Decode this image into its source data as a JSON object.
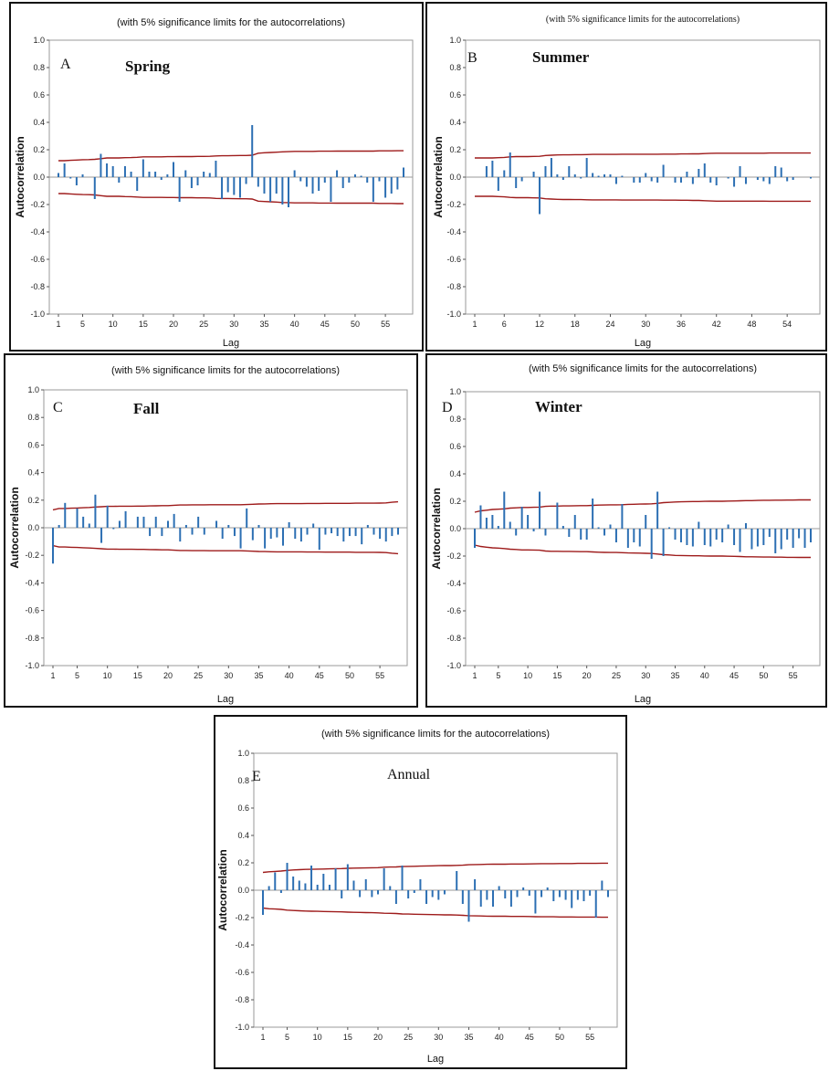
{
  "chart_data": [
    {
      "type": "bar",
      "panel_letter": "A",
      "title": "Spring",
      "subtitle": "(with 5% significance limits for the autocorrelations)",
      "xlabel": "Lag",
      "ylabel": "Autocorrelation",
      "ylim": [
        -1.0,
        1.0
      ],
      "yticks": [
        "1.0",
        "0.8",
        "0.6",
        "0.4",
        "0.2",
        "0.0",
        "-0.2",
        "-0.4",
        "-0.6",
        "-0.8",
        "-1.0"
      ],
      "xticks": [
        1,
        5,
        10,
        15,
        20,
        25,
        30,
        35,
        40,
        45,
        50,
        55
      ],
      "lags": [
        1,
        2,
        3,
        4,
        5,
        6,
        7,
        8,
        9,
        10,
        11,
        12,
        13,
        14,
        15,
        16,
        17,
        18,
        19,
        20,
        21,
        22,
        23,
        24,
        25,
        26,
        27,
        28,
        29,
        30,
        31,
        32,
        33,
        34,
        35,
        36,
        37,
        38,
        39,
        40,
        41,
        42,
        43,
        44,
        45,
        46,
        47,
        48,
        49,
        50,
        51,
        52,
        53,
        54,
        55,
        56,
        57,
        58
      ],
      "values": [
        0.03,
        0.1,
        -0.01,
        -0.06,
        0.02,
        0.0,
        -0.16,
        0.17,
        0.1,
        0.08,
        -0.04,
        0.08,
        0.04,
        -0.1,
        0.13,
        0.04,
        0.04,
        -0.02,
        0.02,
        0.11,
        -0.18,
        0.05,
        -0.08,
        -0.06,
        0.04,
        0.03,
        0.12,
        -0.16,
        -0.11,
        -0.13,
        -0.15,
        -0.05,
        0.38,
        -0.07,
        -0.12,
        -0.18,
        -0.12,
        -0.2,
        -0.22,
        0.05,
        -0.03,
        -0.07,
        -0.12,
        -0.1,
        -0.04,
        -0.18,
        0.05,
        -0.08,
        -0.04,
        0.02,
        0.01,
        -0.04,
        -0.18,
        -0.03,
        -0.15,
        -0.12,
        -0.09,
        0.07
      ],
      "limit_upper": [
        0.12,
        0.12,
        0.123,
        0.125,
        0.127,
        0.128,
        0.13,
        0.135,
        0.14,
        0.14,
        0.14,
        0.142,
        0.143,
        0.145,
        0.148,
        0.148,
        0.148,
        0.148,
        0.149,
        0.149,
        0.15,
        0.15,
        0.15,
        0.151,
        0.151,
        0.152,
        0.155,
        0.156,
        0.156,
        0.157,
        0.158,
        0.158,
        0.16,
        0.175,
        0.178,
        0.18,
        0.182,
        0.185,
        0.186,
        0.188,
        0.188,
        0.188,
        0.188,
        0.189,
        0.189,
        0.189,
        0.19,
        0.19,
        0.19,
        0.19,
        0.19,
        0.19,
        0.19,
        0.192,
        0.192,
        0.192,
        0.193,
        0.193
      ]
    },
    {
      "type": "bar",
      "panel_letter": "B",
      "title": "Summer",
      "subtitle": "(with 5% significance limits for the autocorrelations)",
      "xlabel": "Lag",
      "ylabel": "Autocorrelation",
      "ylim": [
        -1.0,
        1.0
      ],
      "yticks": [
        "1.0",
        "0.8",
        "0.6",
        "0.4",
        "0.2",
        "0.0",
        "-0.2",
        "-0.4",
        "-0.6",
        "-0.8",
        "-1.0"
      ],
      "xticks": [
        1,
        6,
        12,
        18,
        24,
        30,
        36,
        42,
        48,
        54
      ],
      "lags": [
        1,
        2,
        3,
        4,
        5,
        6,
        7,
        8,
        9,
        10,
        11,
        12,
        13,
        14,
        15,
        16,
        17,
        18,
        19,
        20,
        21,
        22,
        23,
        24,
        25,
        26,
        27,
        28,
        29,
        30,
        31,
        32,
        33,
        34,
        35,
        36,
        37,
        38,
        39,
        40,
        41,
        42,
        43,
        44,
        45,
        46,
        47,
        48,
        49,
        50,
        51,
        52,
        53,
        54,
        55,
        56,
        57,
        58
      ],
      "values": [
        0.0,
        0.0,
        0.08,
        0.12,
        -0.1,
        0.05,
        0.18,
        -0.08,
        -0.03,
        0.0,
        0.04,
        -0.27,
        0.08,
        0.14,
        0.02,
        -0.02,
        0.08,
        0.02,
        -0.01,
        0.14,
        0.03,
        0.01,
        0.02,
        0.02,
        -0.05,
        0.01,
        0.0,
        -0.04,
        -0.04,
        0.03,
        -0.03,
        -0.04,
        0.09,
        0.0,
        -0.04,
        -0.04,
        0.04,
        -0.05,
        0.06,
        0.1,
        -0.04,
        -0.06,
        0.0,
        -0.01,
        -0.07,
        0.08,
        -0.05,
        0.0,
        -0.02,
        -0.03,
        -0.05,
        0.08,
        0.07,
        -0.03,
        -0.02,
        0.0,
        0.0,
        -0.01
      ],
      "limit_upper": [
        0.14,
        0.14,
        0.14,
        0.14,
        0.142,
        0.144,
        0.148,
        0.15,
        0.15,
        0.15,
        0.151,
        0.152,
        0.158,
        0.16,
        0.162,
        0.163,
        0.163,
        0.164,
        0.164,
        0.165,
        0.166,
        0.166,
        0.166,
        0.166,
        0.166,
        0.167,
        0.167,
        0.167,
        0.167,
        0.167,
        0.167,
        0.167,
        0.168,
        0.168,
        0.168,
        0.169,
        0.169,
        0.17,
        0.17,
        0.172,
        0.174,
        0.175,
        0.175,
        0.175,
        0.175,
        0.175,
        0.175,
        0.175,
        0.175,
        0.175,
        0.176,
        0.176,
        0.176,
        0.176,
        0.176,
        0.176,
        0.176,
        0.176
      ]
    },
    {
      "type": "bar",
      "panel_letter": "C",
      "title": "Fall",
      "subtitle": "(with 5% significance limits for the autocorrelations)",
      "xlabel": "Lag",
      "ylabel": "Autocorrelation",
      "ylim": [
        -1.0,
        1.0
      ],
      "yticks": [
        "1.0",
        "0.8",
        "0.6",
        "0.4",
        "0.2",
        "0.0",
        "-0.2",
        "-0.4",
        "-0.6",
        "-0.8",
        "-1.0"
      ],
      "xticks": [
        1,
        5,
        10,
        15,
        20,
        25,
        30,
        35,
        40,
        45,
        50,
        55
      ],
      "lags": [
        1,
        2,
        3,
        4,
        5,
        6,
        7,
        8,
        9,
        10,
        11,
        12,
        13,
        14,
        15,
        16,
        17,
        18,
        19,
        20,
        21,
        22,
        23,
        24,
        25,
        26,
        27,
        28,
        29,
        30,
        31,
        32,
        33,
        34,
        35,
        36,
        37,
        38,
        39,
        40,
        41,
        42,
        43,
        44,
        45,
        46,
        47,
        48,
        49,
        50,
        51,
        52,
        53,
        54,
        55,
        56,
        57,
        58
      ],
      "values": [
        -0.26,
        0.02,
        0.18,
        0.0,
        0.14,
        0.08,
        0.03,
        0.24,
        -0.11,
        0.16,
        -0.01,
        0.05,
        0.12,
        0.0,
        0.08,
        0.08,
        -0.06,
        0.08,
        -0.06,
        0.05,
        0.1,
        -0.1,
        0.02,
        -0.05,
        0.08,
        -0.05,
        0.0,
        0.05,
        -0.08,
        0.02,
        -0.06,
        -0.15,
        0.14,
        -0.09,
        0.02,
        -0.15,
        -0.08,
        -0.07,
        -0.13,
        0.04,
        -0.08,
        -0.1,
        -0.05,
        0.03,
        -0.16,
        -0.05,
        -0.04,
        -0.06,
        -0.1,
        -0.06,
        -0.06,
        -0.12,
        0.02,
        -0.05,
        -0.08,
        -0.1,
        -0.06,
        -0.05
      ],
      "limit_upper": [
        0.13,
        0.14,
        0.14,
        0.142,
        0.143,
        0.145,
        0.147,
        0.15,
        0.152,
        0.155,
        0.155,
        0.156,
        0.156,
        0.156,
        0.157,
        0.157,
        0.158,
        0.159,
        0.16,
        0.16,
        0.163,
        0.165,
        0.165,
        0.166,
        0.166,
        0.166,
        0.167,
        0.167,
        0.167,
        0.167,
        0.167,
        0.167,
        0.168,
        0.17,
        0.172,
        0.173,
        0.174,
        0.175,
        0.175,
        0.175,
        0.175,
        0.175,
        0.176,
        0.176,
        0.176,
        0.177,
        0.177,
        0.177,
        0.177,
        0.177,
        0.178,
        0.178,
        0.178,
        0.178,
        0.179,
        0.18,
        0.185,
        0.188
      ]
    },
    {
      "type": "bar",
      "panel_letter": "D",
      "title": "Winter",
      "subtitle": "(with 5% significance limits for the autocorrelations)",
      "xlabel": "Lag",
      "ylabel": "Autocorrelation",
      "ylim": [
        -1.0,
        1.0
      ],
      "yticks": [
        "1.0",
        "0.8",
        "0.6",
        "0.4",
        "0.2",
        "0.0",
        "-0.2",
        "-0.4",
        "-0.6",
        "-0.8",
        "-1.0"
      ],
      "xticks": [
        1,
        5,
        10,
        15,
        20,
        25,
        30,
        35,
        40,
        45,
        50,
        55
      ],
      "lags": [
        1,
        2,
        3,
        4,
        5,
        6,
        7,
        8,
        9,
        10,
        11,
        12,
        13,
        14,
        15,
        16,
        17,
        18,
        19,
        20,
        21,
        22,
        23,
        24,
        25,
        26,
        27,
        28,
        29,
        30,
        31,
        32,
        33,
        34,
        35,
        36,
        37,
        38,
        39,
        40,
        41,
        42,
        43,
        44,
        45,
        46,
        47,
        48,
        49,
        50,
        51,
        52,
        53,
        54,
        55,
        56,
        57,
        58
      ],
      "values": [
        -0.14,
        0.17,
        0.08,
        0.1,
        0.02,
        0.27,
        0.05,
        -0.05,
        0.16,
        0.1,
        -0.02,
        0.27,
        -0.05,
        0.0,
        0.19,
        0.02,
        -0.06,
        0.1,
        -0.08,
        -0.08,
        0.22,
        0.01,
        -0.05,
        0.03,
        -0.1,
        0.18,
        -0.14,
        -0.1,
        -0.13,
        0.1,
        -0.22,
        0.27,
        -0.2,
        0.01,
        -0.08,
        -0.1,
        -0.12,
        -0.13,
        0.05,
        -0.12,
        -0.13,
        -0.08,
        -0.1,
        0.03,
        -0.12,
        -0.17,
        0.04,
        -0.15,
        -0.13,
        -0.12,
        -0.06,
        -0.18,
        -0.15,
        -0.08,
        -0.14,
        -0.07,
        -0.14,
        -0.1
      ],
      "limit_upper": [
        0.12,
        0.13,
        0.135,
        0.14,
        0.142,
        0.145,
        0.15,
        0.152,
        0.155,
        0.155,
        0.156,
        0.157,
        0.163,
        0.165,
        0.165,
        0.166,
        0.166,
        0.167,
        0.168,
        0.168,
        0.17,
        0.172,
        0.173,
        0.174,
        0.174,
        0.175,
        0.177,
        0.178,
        0.179,
        0.18,
        0.181,
        0.185,
        0.19,
        0.192,
        0.195,
        0.196,
        0.197,
        0.198,
        0.198,
        0.199,
        0.2,
        0.2,
        0.2,
        0.201,
        0.202,
        0.203,
        0.205,
        0.205,
        0.206,
        0.207,
        0.207,
        0.208,
        0.208,
        0.209,
        0.209,
        0.21,
        0.21,
        0.21
      ]
    },
    {
      "type": "bar",
      "panel_letter": "E",
      "title": "Annual",
      "subtitle": "(with 5% significance limits for the autocorrelations)",
      "xlabel": "Lag",
      "ylabel": "Autocorrelation",
      "ylim": [
        -1.0,
        1.0
      ],
      "yticks": [
        "1.0",
        "0.8",
        "0.6",
        "0.4",
        "0.2",
        "0.0",
        "-0.2",
        "-0.4",
        "-0.6",
        "-0.8",
        "-1.0"
      ],
      "xticks": [
        1,
        5,
        10,
        15,
        20,
        25,
        30,
        35,
        40,
        45,
        50,
        55
      ],
      "lags": [
        1,
        2,
        3,
        4,
        5,
        6,
        7,
        8,
        9,
        10,
        11,
        12,
        13,
        14,
        15,
        16,
        17,
        18,
        19,
        20,
        21,
        22,
        23,
        24,
        25,
        26,
        27,
        28,
        29,
        30,
        31,
        32,
        33,
        34,
        35,
        36,
        37,
        38,
        39,
        40,
        41,
        42,
        43,
        44,
        45,
        46,
        47,
        48,
        49,
        50,
        51,
        52,
        53,
        54,
        55,
        56,
        57,
        58
      ],
      "values": [
        -0.18,
        0.03,
        0.13,
        -0.02,
        0.2,
        0.1,
        0.07,
        0.05,
        0.18,
        0.04,
        0.12,
        0.04,
        0.16,
        -0.06,
        0.19,
        0.07,
        -0.05,
        0.08,
        -0.05,
        -0.03,
        0.16,
        0.03,
        -0.1,
        0.18,
        -0.06,
        -0.02,
        0.08,
        -0.1,
        -0.05,
        -0.07,
        -0.03,
        0.0,
        0.14,
        -0.1,
        -0.23,
        0.08,
        -0.12,
        -0.07,
        -0.12,
        0.03,
        -0.06,
        -0.12,
        -0.05,
        0.02,
        -0.04,
        -0.17,
        -0.05,
        0.02,
        -0.08,
        -0.05,
        -0.07,
        -0.13,
        -0.07,
        -0.08,
        -0.04,
        -0.2,
        0.07,
        -0.05
      ],
      "limit_upper": [
        0.13,
        0.135,
        0.137,
        0.14,
        0.145,
        0.148,
        0.15,
        0.152,
        0.153,
        0.154,
        0.155,
        0.156,
        0.157,
        0.158,
        0.16,
        0.161,
        0.162,
        0.163,
        0.164,
        0.165,
        0.168,
        0.169,
        0.17,
        0.173,
        0.174,
        0.175,
        0.176,
        0.177,
        0.178,
        0.179,
        0.18,
        0.18,
        0.181,
        0.183,
        0.186,
        0.187,
        0.188,
        0.189,
        0.19,
        0.19,
        0.19,
        0.191,
        0.191,
        0.191,
        0.192,
        0.193,
        0.194,
        0.194,
        0.194,
        0.195,
        0.195,
        0.195,
        0.196,
        0.196,
        0.196,
        0.196,
        0.197,
        0.197
      ]
    }
  ]
}
